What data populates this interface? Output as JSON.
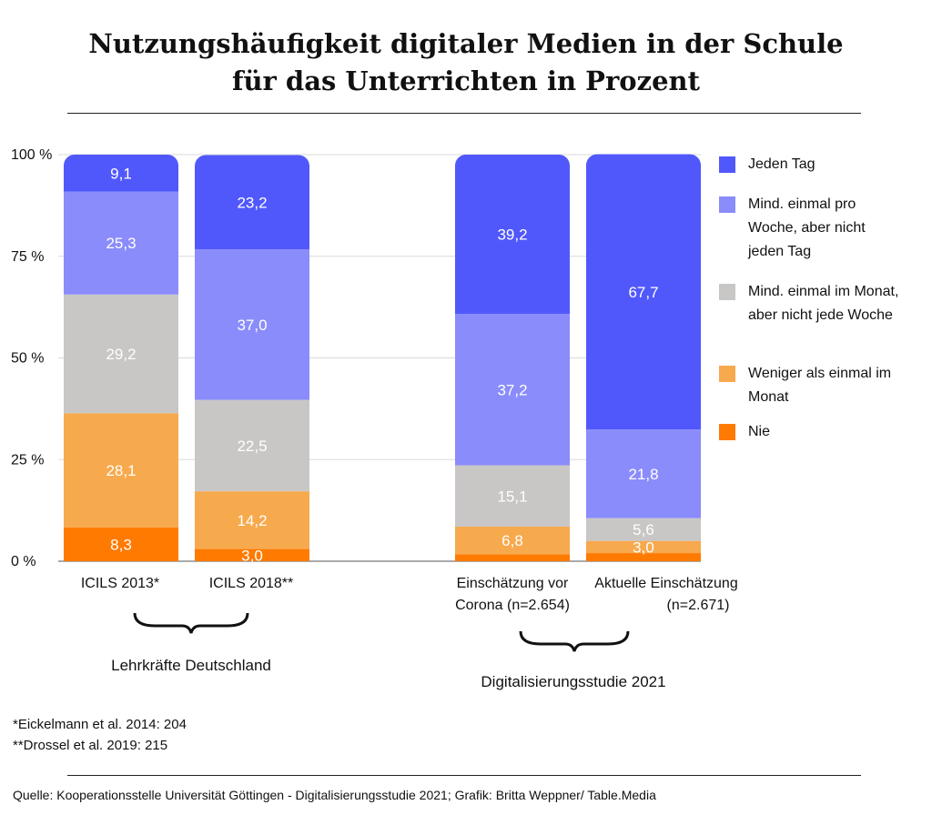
{
  "title": {
    "line1": "Nutzungshäufigkeit digitaler Medien in der Schule",
    "line2": "für das Unterrichten in Prozent"
  },
  "chart_data": {
    "type": "bar",
    "stacked": true,
    "title": "Nutzungshäufigkeit digitaler Medien in der Schule für das Unterrichten in Prozent",
    "ylim": [
      0,
      100
    ],
    "yticks": [
      "0 %",
      "25 %",
      "50 %",
      "75 %",
      "100 %"
    ],
    "categories": [
      "ICILS 2013*",
      "ICILS 2018**",
      "Einschätzung vor Corona (n=2.654)",
      "Aktuelle Einschätzung (n=2.671)"
    ],
    "series": [
      {
        "name": "Nie",
        "color": "#ff7a00",
        "values": [
          8.3,
          3.0,
          1.7,
          2.0
        ],
        "labels": [
          "8,3",
          "3,0",
          "",
          ""
        ]
      },
      {
        "name": "Weniger als einmal im Monat",
        "color": "#f7a94d",
        "values": [
          28.1,
          14.2,
          6.8,
          3.0
        ],
        "labels": [
          "28,1",
          "14,2",
          "6,8",
          "3,0"
        ]
      },
      {
        "name": "Mind. einmal im Monat, aber nicht jede Woche",
        "color": "#c8c7c6",
        "values": [
          29.2,
          22.5,
          15.1,
          5.6
        ],
        "labels": [
          "29,2",
          "22,5",
          "15,1",
          "5,6"
        ]
      },
      {
        "name": "Mind. einmal pro Woche, aber nicht jeden Tag",
        "color": "#8a8cfb",
        "values": [
          25.3,
          37.0,
          37.2,
          21.8
        ],
        "labels": [
          "25,3",
          "37,0",
          "37,2",
          "21,8"
        ]
      },
      {
        "name": "Jeden Tag",
        "color": "#5158fb",
        "values": [
          9.1,
          23.2,
          39.2,
          67.7
        ],
        "labels": [
          "9,1",
          "23,2",
          "39,2",
          "67,7"
        ]
      }
    ],
    "groups": [
      "Lehrkräfte Deutschland",
      "Digitalisierungsstudie 2021"
    ]
  },
  "legend": [
    {
      "label": "Jeden Tag",
      "color": "#5158fb"
    },
    {
      "label": "Mind. einmal pro Woche, aber nicht jeden Tag",
      "color": "#8a8cfb"
    },
    {
      "label": "Mind. einmal im Monat, aber nicht jede Woche",
      "color": "#c8c7c6"
    },
    {
      "label": "Weniger als einmal im Monat",
      "color": "#f7a94d"
    },
    {
      "label": "Nie",
      "color": "#ff7a00"
    }
  ],
  "xlabels": {
    "c1": "ICILS 2013*",
    "c2": "ICILS 2018**",
    "c3_line1": "Einschätzung vor",
    "c3_line2": "Corona (n=2.654)",
    "c4_line1": "Aktuelle Einschätzung",
    "c4_line2": "(n=2.671)"
  },
  "groups": {
    "g1": "Lehrkräfte Deutschland",
    "g2": "Digitalisierungsstudie 2021"
  },
  "notes": {
    "n1": "*Eickelmann et al. 2014: 204",
    "n2": "**Drossel et al. 2019: 215"
  },
  "source": "Quelle: Kooperationsstelle Universität Göttingen - Digitalisierungsstudie 2021; Grafik: Britta Weppner/ Table.Media"
}
